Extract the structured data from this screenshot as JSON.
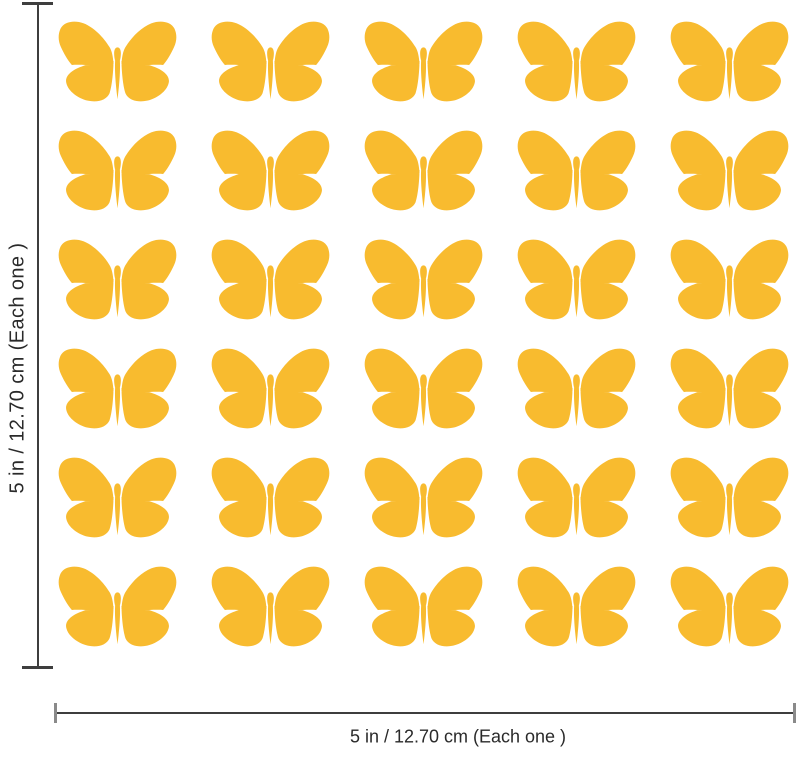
{
  "product": {
    "decal": {
      "shape": "butterfly",
      "color": "#F8BB2F",
      "rows": 6,
      "columns": 5,
      "count": 30
    }
  },
  "annotations": {
    "vertical_label": "5 in / 12.70 cm  (Each one )",
    "horizontal_label": "5 in / 12.70 cm  (Each one )",
    "line_color": "#3e3e3e",
    "cap_color": "#8a8a8a",
    "text_color": "#2a2a2a"
  }
}
